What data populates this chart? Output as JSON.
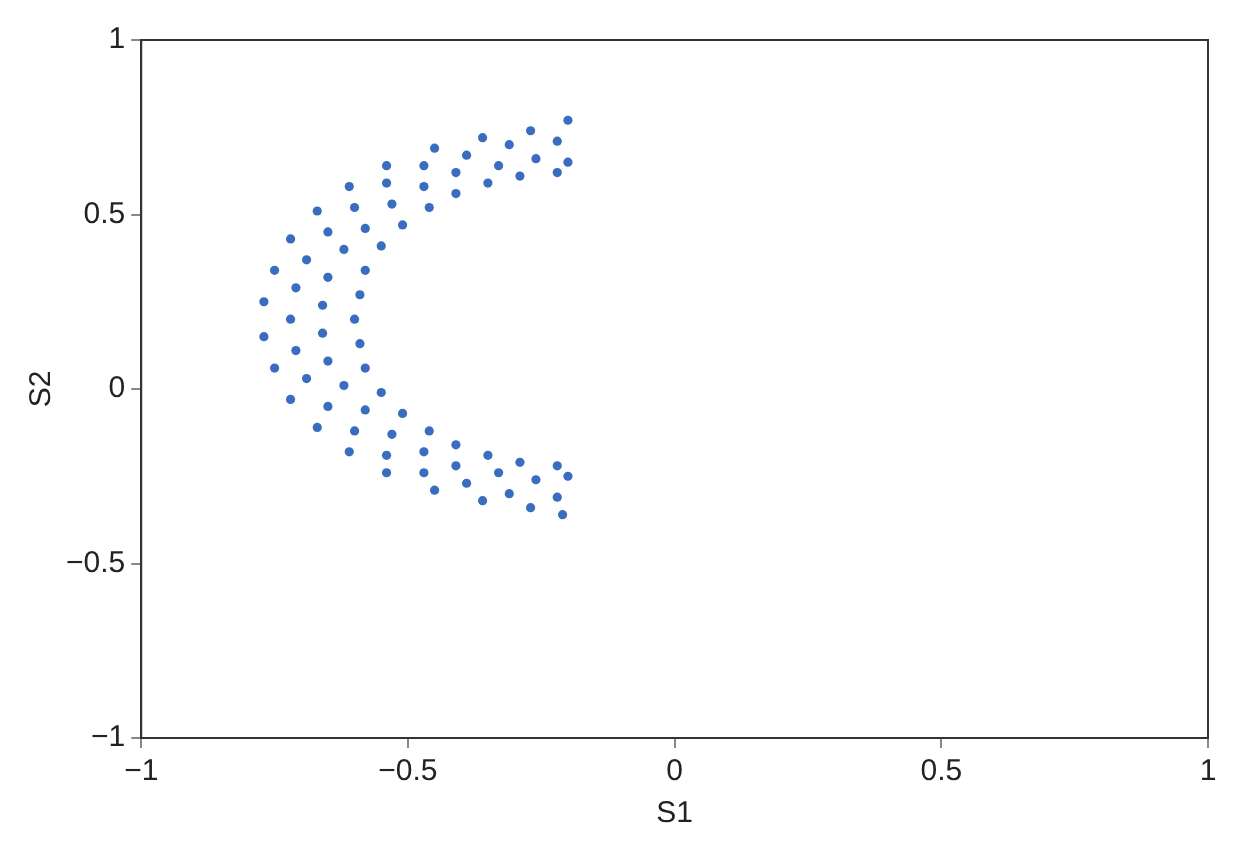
{
  "chart_data": {
    "type": "scatter",
    "xlabel": "S1",
    "ylabel": "S2",
    "xlim": [
      -1,
      1
    ],
    "ylim": [
      -1,
      1
    ],
    "xticks": [
      -1,
      -0.5,
      0,
      0.5,
      1
    ],
    "yticks": [
      -1,
      -0.5,
      0,
      0.5,
      1
    ],
    "grid": false,
    "legend": false,
    "marker": "circle",
    "series": [
      {
        "color": "#3a6cc0",
        "x": [
          -0.22,
          -0.29,
          -0.35,
          -0.41,
          -0.46,
          -0.51,
          -0.55,
          -0.58,
          -0.59,
          -0.6,
          -0.59,
          -0.58,
          -0.55,
          -0.51,
          -0.46,
          -0.41,
          -0.35,
          -0.29,
          -0.22,
          -0.22,
          -0.31,
          -0.39,
          -0.47,
          -0.54,
          -0.6,
          -0.65,
          -0.69,
          -0.71,
          -0.72,
          -0.71,
          -0.69,
          -0.65,
          -0.6,
          -0.54,
          -0.47,
          -0.39,
          -0.31,
          -0.22,
          -0.26,
          -0.33,
          -0.41,
          -0.47,
          -0.53,
          -0.58,
          -0.62,
          -0.65,
          -0.66,
          -0.66,
          -0.65,
          -0.62,
          -0.58,
          -0.53,
          -0.47,
          -0.41,
          -0.33,
          -0.26,
          -0.27,
          -0.36,
          -0.45,
          -0.54,
          -0.61,
          -0.67,
          -0.72,
          -0.75,
          -0.77,
          -0.77,
          -0.75,
          -0.72,
          -0.67,
          -0.61,
          -0.54,
          -0.45,
          -0.36,
          -0.27,
          -0.2,
          -0.2,
          -0.2,
          -0.21
        ],
        "values": [
          0.62,
          0.61,
          0.59,
          0.56,
          0.52,
          0.47,
          0.41,
          0.34,
          0.27,
          0.2,
          0.13,
          0.06,
          -0.01,
          -0.07,
          -0.12,
          -0.16,
          -0.19,
          -0.21,
          -0.22,
          0.71,
          0.7,
          0.67,
          0.64,
          0.59,
          0.52,
          0.45,
          0.37,
          0.29,
          0.2,
          0.11,
          0.03,
          -0.05,
          -0.12,
          -0.19,
          -0.24,
          -0.27,
          -0.3,
          -0.31,
          0.66,
          0.64,
          0.62,
          0.58,
          0.53,
          0.46,
          0.4,
          0.32,
          0.24,
          0.16,
          0.08,
          0.01,
          -0.06,
          -0.13,
          -0.18,
          -0.22,
          -0.24,
          -0.26,
          0.74,
          0.72,
          0.69,
          0.64,
          0.58,
          0.51,
          0.43,
          0.34,
          0.25,
          0.15,
          0.06,
          -0.03,
          -0.11,
          -0.18,
          -0.24,
          -0.29,
          -0.32,
          -0.34,
          0.77,
          0.65,
          -0.25,
          -0.36
        ]
      }
    ]
  }
}
